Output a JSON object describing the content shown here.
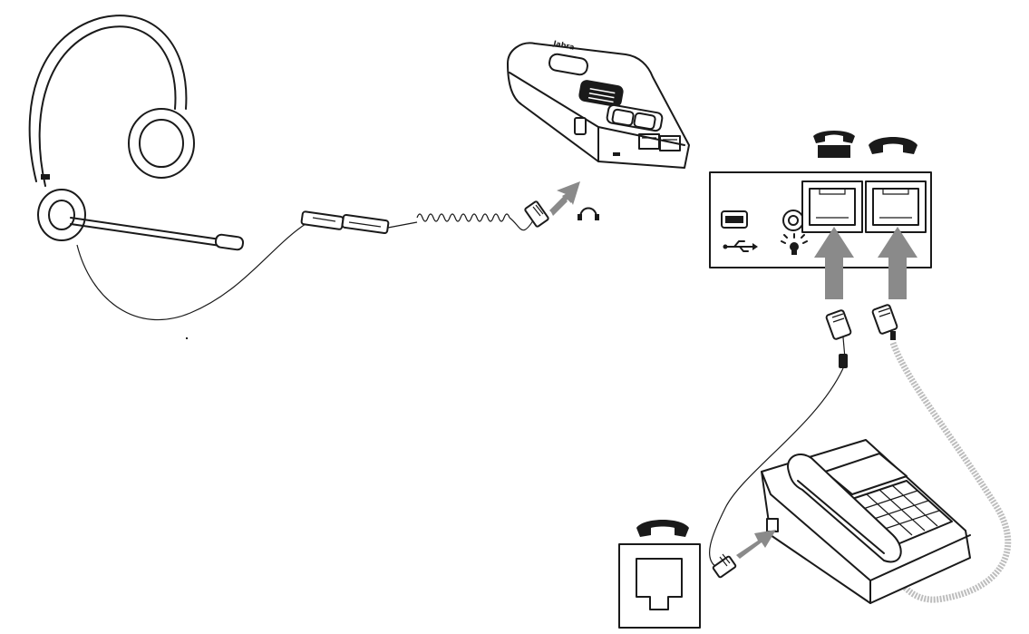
{
  "amplifier": {
    "brand_text": "Jabra"
  },
  "colors": {
    "line": "#1a1a1a",
    "arrow": "#8a8a8a",
    "background": "#ffffff",
    "cable_coil": "#bdbdbd"
  },
  "icons": [
    "headset-port-icon",
    "handset-lifted-icon",
    "handset-icon",
    "usb-icon",
    "light-bulb-icon",
    "wall-handset-icon"
  ]
}
